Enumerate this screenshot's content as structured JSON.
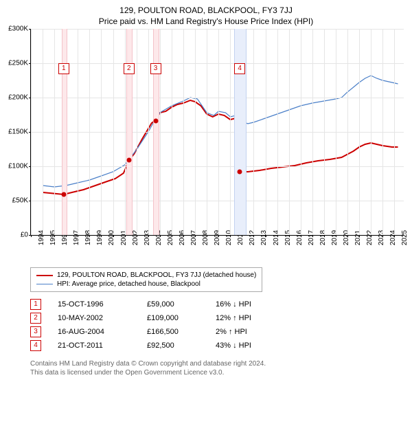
{
  "title_line1": "129, POULTON ROAD, BLACKPOOL, FY3 7JJ",
  "title_line2": "Price paid vs. HM Land Registry's House Price Index (HPI)",
  "chart": {
    "type": "line",
    "background_color": "#ffffff",
    "grid_color": "#e5e5e5",
    "x_min": 1994,
    "x_max": 2025.8,
    "y_min": 0,
    "y_max": 300000,
    "y_ticks": [
      0,
      50000,
      100000,
      150000,
      200000,
      250000,
      300000
    ],
    "y_tick_labels": [
      "£0",
      "£50K",
      "£100K",
      "£150K",
      "£200K",
      "£250K",
      "£300K"
    ],
    "x_ticks": [
      1994,
      1995,
      1996,
      1997,
      1998,
      1999,
      2000,
      2001,
      2002,
      2003,
      2004,
      2005,
      2006,
      2007,
      2008,
      2009,
      2010,
      2011,
      2012,
      2013,
      2014,
      2015,
      2016,
      2017,
      2018,
      2019,
      2020,
      2021,
      2022,
      2023,
      2024,
      2025
    ],
    "series": [
      {
        "name": "property",
        "label": "129, POULTON ROAD, BLACKPOOL, FY3 7JJ (detached house)",
        "color": "#cc0000",
        "width": 2,
        "points": [
          [
            1995.0,
            62000
          ],
          [
            1996.8,
            59000
          ],
          [
            1997.5,
            62000
          ],
          [
            1998.5,
            66000
          ],
          [
            1999.5,
            72000
          ],
          [
            2000.5,
            78000
          ],
          [
            2001.2,
            82000
          ],
          [
            2001.9,
            90000
          ],
          [
            2002.36,
            109000
          ],
          [
            2002.8,
            118000
          ],
          [
            2003.5,
            140000
          ],
          [
            2004.3,
            163000
          ],
          [
            2004.63,
            166500
          ],
          [
            2005.0,
            178000
          ],
          [
            2005.5,
            180000
          ],
          [
            2006.0,
            186000
          ],
          [
            2006.5,
            190000
          ],
          [
            2007.0,
            192000
          ],
          [
            2007.6,
            196000
          ],
          [
            2008.0,
            194000
          ],
          [
            2008.5,
            188000
          ],
          [
            2009.0,
            176000
          ],
          [
            2009.5,
            172000
          ],
          [
            2010.0,
            176000
          ],
          [
            2010.5,
            174000
          ],
          [
            2011.0,
            168000
          ],
          [
            2011.5,
            170000
          ],
          [
            2011.8,
            162000
          ],
          [
            2011.81,
            92500
          ],
          [
            2012.5,
            92000
          ],
          [
            2013.5,
            94000
          ],
          [
            2014.5,
            97000
          ],
          [
            2015.5,
            99000
          ],
          [
            2016.5,
            101000
          ],
          [
            2017.5,
            105000
          ],
          [
            2018.5,
            108000
          ],
          [
            2019.5,
            110000
          ],
          [
            2020.5,
            113000
          ],
          [
            2021.5,
            122000
          ],
          [
            2022.0,
            128000
          ],
          [
            2022.5,
            132000
          ],
          [
            2023.0,
            134000
          ],
          [
            2023.5,
            132000
          ],
          [
            2024.0,
            130000
          ],
          [
            2024.8,
            128000
          ],
          [
            2025.3,
            128000
          ]
        ]
      },
      {
        "name": "hpi",
        "label": "HPI: Average price, detached house, Blackpool",
        "color": "#4a7fc8",
        "width": 1.2,
        "points": [
          [
            1995.0,
            72000
          ],
          [
            1996.0,
            70000
          ],
          [
            1997.0,
            72000
          ],
          [
            1998.0,
            76000
          ],
          [
            1999.0,
            80000
          ],
          [
            2000.0,
            86000
          ],
          [
            2001.0,
            92000
          ],
          [
            2002.0,
            102000
          ],
          [
            2003.0,
            124000
          ],
          [
            2004.0,
            150000
          ],
          [
            2004.5,
            165000
          ],
          [
            2005.0,
            178000
          ],
          [
            2006.0,
            188000
          ],
          [
            2007.0,
            195000
          ],
          [
            2007.6,
            200000
          ],
          [
            2008.2,
            198000
          ],
          [
            2009.0,
            178000
          ],
          [
            2009.6,
            174000
          ],
          [
            2010.0,
            180000
          ],
          [
            2010.6,
            178000
          ],
          [
            2011.0,
            172000
          ],
          [
            2011.5,
            174000
          ],
          [
            2012.0,
            165000
          ],
          [
            2012.5,
            162000
          ],
          [
            2013.0,
            164000
          ],
          [
            2014.0,
            170000
          ],
          [
            2015.0,
            176000
          ],
          [
            2016.0,
            182000
          ],
          [
            2017.0,
            188000
          ],
          [
            2018.0,
            192000
          ],
          [
            2019.0,
            195000
          ],
          [
            2020.0,
            198000
          ],
          [
            2020.5,
            200000
          ],
          [
            2021.0,
            208000
          ],
          [
            2021.5,
            215000
          ],
          [
            2022.0,
            222000
          ],
          [
            2022.5,
            228000
          ],
          [
            2023.0,
            232000
          ],
          [
            2023.5,
            228000
          ],
          [
            2024.0,
            225000
          ],
          [
            2024.8,
            222000
          ],
          [
            2025.3,
            220000
          ]
        ]
      }
    ],
    "markers": [
      {
        "n": "1",
        "x": 1996.8,
        "y": 59000,
        "box_top": 50,
        "band_color": "#fde8ea",
        "band_border": "#f4c2c9",
        "box_border": "#cc0000",
        "dot_color": "#cc0000"
      },
      {
        "n": "2",
        "x": 2002.36,
        "y": 109000,
        "box_top": 50,
        "band_color": "#fde8ea",
        "band_border": "#f4c2c9",
        "box_border": "#cc0000",
        "dot_color": "#cc0000"
      },
      {
        "n": "3",
        "x": 2004.63,
        "y": 166500,
        "box_top": 50,
        "band_color": "#fde8ea",
        "band_border": "#f4c2c9",
        "box_border": "#cc0000",
        "dot_color": "#cc0000"
      },
      {
        "n": "4",
        "x": 2011.81,
        "y": 92500,
        "box_top": 50,
        "band_color": "#e8eefb",
        "band_border": "#c2d1f0",
        "box_border": "#cc0000",
        "dot_color": "#cc0000",
        "band_wide": true
      }
    ],
    "marker_band_width_pct": 1.2,
    "marker_band_wide_pct": 3.0
  },
  "legend": [
    {
      "color": "#cc0000",
      "width": 2,
      "label": "129, POULTON ROAD, BLACKPOOL, FY3 7JJ (detached house)"
    },
    {
      "color": "#4a7fc8",
      "width": 1.2,
      "label": "HPI: Average price, detached house, Blackpool"
    }
  ],
  "sales": [
    {
      "n": "1",
      "date": "15-OCT-1996",
      "price": "£59,000",
      "delta": "16% ↓ HPI",
      "box_border": "#cc0000"
    },
    {
      "n": "2",
      "date": "10-MAY-2002",
      "price": "£109,000",
      "delta": "12% ↑ HPI",
      "box_border": "#cc0000"
    },
    {
      "n": "3",
      "date": "16-AUG-2004",
      "price": "£166,500",
      "delta": "2% ↑ HPI",
      "box_border": "#cc0000"
    },
    {
      "n": "4",
      "date": "21-OCT-2011",
      "price": "£92,500",
      "delta": "43% ↓ HPI",
      "box_border": "#cc0000"
    }
  ],
  "footnote_line1": "Contains HM Land Registry data © Crown copyright and database right 2024.",
  "footnote_line2": "This data is licensed under the Open Government Licence v3.0."
}
